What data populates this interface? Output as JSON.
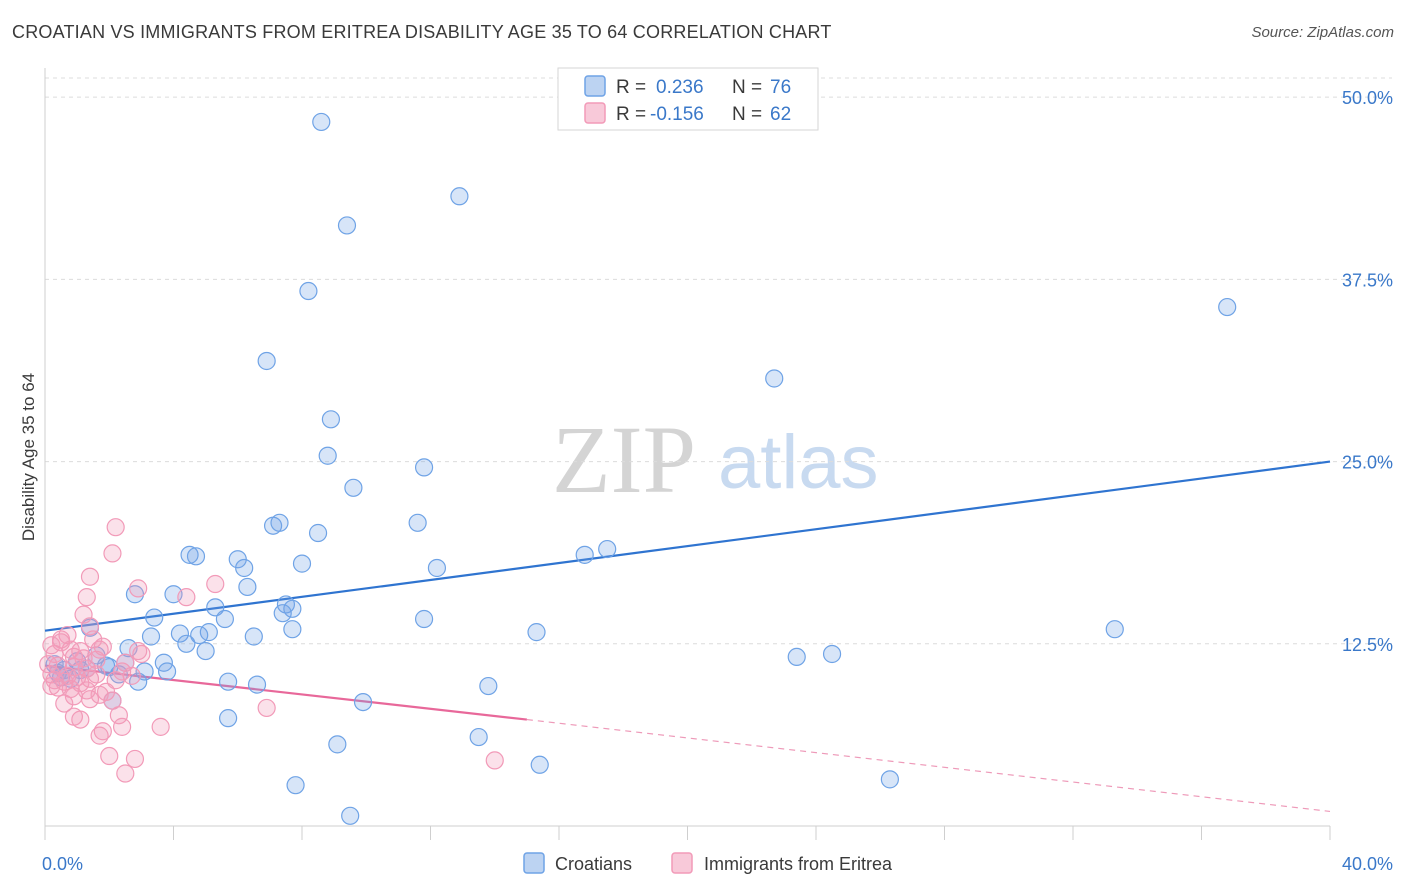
{
  "header": {
    "title": "CROATIAN VS IMMIGRANTS FROM ERITREA DISABILITY AGE 35 TO 64 CORRELATION CHART",
    "source": "Source: ZipAtlas.com"
  },
  "watermark": {
    "zip": "ZIP",
    "atlas": "atlas"
  },
  "legend_top": {
    "rows": [
      {
        "r_label": "R =",
        "r_value": "0.236",
        "n_label": "N =",
        "n_value": "76",
        "color": "#6fa3e6"
      },
      {
        "r_label": "R =",
        "r_value": "-0.156",
        "n_label": "N =",
        "n_value": "62",
        "color": "#f29ab8"
      }
    ]
  },
  "legend_bottom": {
    "items": [
      {
        "label": "Croatians",
        "color": "#6fa3e6"
      },
      {
        "label": "Immigrants from Eritrea",
        "color": "#f29ab8"
      }
    ]
  },
  "chart_data": {
    "type": "scatter",
    "ylabel": "Disability Age 35 to 64",
    "xlabel": "",
    "xlim": [
      0,
      40
    ],
    "ylim": [
      0,
      52
    ],
    "y_ticks": [
      {
        "value": 12.5,
        "label": "12.5%"
      },
      {
        "value": 25.0,
        "label": "25.0%"
      },
      {
        "value": 37.5,
        "label": "37.5%"
      },
      {
        "value": 50.0,
        "label": "50.0%"
      }
    ],
    "x_tick_labels": [
      {
        "value": 0,
        "label": "0.0%"
      },
      {
        "value": 40,
        "label": "40.0%"
      }
    ],
    "grid": "horizontal dashed",
    "series": [
      {
        "name": "Croatians",
        "color": "#6fa3e6",
        "trend": {
          "x": [
            0,
            40
          ],
          "y": [
            13.4,
            25.0
          ],
          "style": "solid"
        },
        "points": [
          [
            8.6,
            48.3
          ],
          [
            12.9,
            43.2
          ],
          [
            9.4,
            41.2
          ],
          [
            8.2,
            36.7
          ],
          [
            36.8,
            35.6
          ],
          [
            6.9,
            31.9
          ],
          [
            22.7,
            30.7
          ],
          [
            8.9,
            27.9
          ],
          [
            8.8,
            25.4
          ],
          [
            11.8,
            24.6
          ],
          [
            9.6,
            23.2
          ],
          [
            7.1,
            20.6
          ],
          [
            7.3,
            20.8
          ],
          [
            11.6,
            20.8
          ],
          [
            8.5,
            20.1
          ],
          [
            17.5,
            19.0
          ],
          [
            16.8,
            18.6
          ],
          [
            4.5,
            18.6
          ],
          [
            4.7,
            18.5
          ],
          [
            6.0,
            18.3
          ],
          [
            6.2,
            17.7
          ],
          [
            8.0,
            18.0
          ],
          [
            12.2,
            17.7
          ],
          [
            6.3,
            16.4
          ],
          [
            2.8,
            15.9
          ],
          [
            4.0,
            15.9
          ],
          [
            5.3,
            15.0
          ],
          [
            7.5,
            15.2
          ],
          [
            7.7,
            14.9
          ],
          [
            7.4,
            14.6
          ],
          [
            3.4,
            14.3
          ],
          [
            5.6,
            14.2
          ],
          [
            11.8,
            14.2
          ],
          [
            1.4,
            13.6
          ],
          [
            7.7,
            13.5
          ],
          [
            5.1,
            13.3
          ],
          [
            4.2,
            13.2
          ],
          [
            4.8,
            13.1
          ],
          [
            3.3,
            13.0
          ],
          [
            15.3,
            13.3
          ],
          [
            33.3,
            13.5
          ],
          [
            6.5,
            13.0
          ],
          [
            4.4,
            12.5
          ],
          [
            5.0,
            12.0
          ],
          [
            2.6,
            12.2
          ],
          [
            1.6,
            11.7
          ],
          [
            2.5,
            11.2
          ],
          [
            3.7,
            11.2
          ],
          [
            23.4,
            11.6
          ],
          [
            24.5,
            11.8
          ],
          [
            1.0,
            11.3
          ],
          [
            1.9,
            11.0
          ],
          [
            2.0,
            10.9
          ],
          [
            0.3,
            11.1
          ],
          [
            0.6,
            10.7
          ],
          [
            1.1,
            10.7
          ],
          [
            2.3,
            10.4
          ],
          [
            3.1,
            10.6
          ],
          [
            3.8,
            10.6
          ],
          [
            2.9,
            9.9
          ],
          [
            0.5,
            10.2
          ],
          [
            0.8,
            10.1
          ],
          [
            5.7,
            9.9
          ],
          [
            6.6,
            9.7
          ],
          [
            13.8,
            9.6
          ],
          [
            2.1,
            8.6
          ],
          [
            9.9,
            8.5
          ],
          [
            5.7,
            7.4
          ],
          [
            13.5,
            6.1
          ],
          [
            9.1,
            5.6
          ],
          [
            15.4,
            4.2
          ],
          [
            26.3,
            3.2
          ],
          [
            7.8,
            2.8
          ],
          [
            9.5,
            0.7
          ],
          [
            0.4,
            10.5
          ],
          [
            1.3,
            10.8
          ]
        ]
      },
      {
        "name": "Immigrants from Eritrea",
        "color": "#f29ab8",
        "trend": {
          "x": [
            0,
            15
          ],
          "y": [
            11.0,
            7.3
          ],
          "style": "solid",
          "extended_x": [
            15,
            40
          ],
          "extended_y": [
            7.3,
            1.0
          ]
        },
        "points": [
          [
            2.2,
            20.5
          ],
          [
            2.1,
            18.7
          ],
          [
            1.4,
            17.1
          ],
          [
            2.9,
            16.3
          ],
          [
            5.3,
            16.6
          ],
          [
            1.3,
            15.7
          ],
          [
            4.4,
            15.7
          ],
          [
            1.2,
            14.5
          ],
          [
            1.4,
            13.7
          ],
          [
            0.7,
            13.1
          ],
          [
            1.5,
            12.8
          ],
          [
            0.2,
            12.4
          ],
          [
            0.5,
            12.6
          ],
          [
            0.8,
            12.1
          ],
          [
            1.1,
            12.0
          ],
          [
            1.7,
            12.1
          ],
          [
            2.9,
            12.0
          ],
          [
            0.3,
            11.8
          ],
          [
            0.9,
            11.6
          ],
          [
            1.2,
            11.5
          ],
          [
            1.6,
            11.4
          ],
          [
            2.5,
            11.2
          ],
          [
            0.1,
            11.1
          ],
          [
            0.4,
            11.0
          ],
          [
            0.9,
            10.9
          ],
          [
            1.3,
            10.8
          ],
          [
            2.4,
            10.6
          ],
          [
            0.2,
            10.4
          ],
          [
            0.7,
            10.3
          ],
          [
            1.0,
            10.2
          ],
          [
            1.6,
            10.4
          ],
          [
            2.7,
            10.3
          ],
          [
            0.3,
            10.0
          ],
          [
            0.6,
            9.9
          ],
          [
            1.1,
            9.8
          ],
          [
            0.2,
            9.6
          ],
          [
            0.4,
            9.5
          ],
          [
            0.8,
            9.4
          ],
          [
            1.3,
            9.3
          ],
          [
            1.9,
            9.2
          ],
          [
            1.7,
            9.0
          ],
          [
            0.9,
            8.9
          ],
          [
            1.4,
            8.7
          ],
          [
            2.1,
            8.6
          ],
          [
            0.6,
            8.4
          ],
          [
            2.3,
            7.6
          ],
          [
            1.1,
            7.3
          ],
          [
            0.9,
            7.5
          ],
          [
            2.4,
            6.8
          ],
          [
            3.6,
            6.8
          ],
          [
            1.8,
            6.5
          ],
          [
            1.7,
            6.2
          ],
          [
            2.0,
            4.8
          ],
          [
            2.8,
            4.6
          ],
          [
            14.0,
            4.5
          ],
          [
            2.5,
            3.6
          ],
          [
            6.9,
            8.1
          ],
          [
            3.0,
            11.8
          ],
          [
            1.4,
            10.1
          ],
          [
            0.5,
            12.8
          ],
          [
            1.8,
            12.3
          ],
          [
            2.2,
            10.0
          ]
        ]
      }
    ]
  }
}
